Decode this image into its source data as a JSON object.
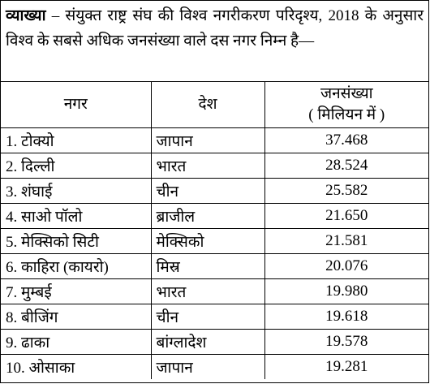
{
  "intro": {
    "label": "व्याख्या",
    "text": "– संयुक्त राष्ट्र संघ की विश्व नगरीकरण परिदृश्य, 2018 के अनुसार विश्व के सबसे अधिक जनसंख्या वाले दस नगर निम्न है—"
  },
  "table": {
    "headers": [
      "नगर",
      "देश",
      "जनसंख्या"
    ],
    "unit": "( मिलियन में )",
    "rows": [
      [
        "1. टोक्यो",
        "जापान",
        "37.468"
      ],
      [
        "2. दिल्ली",
        "भारत",
        "28.524"
      ],
      [
        "3. शंघाई",
        "चीन",
        "25.582"
      ],
      [
        "4. साओ पॉलो",
        "ब्राजील",
        "21.650"
      ],
      [
        "5. मेक्सिको सिटी",
        "मेक्सिको",
        "21.581"
      ],
      [
        "6. काहिरा (कायरो)",
        "मिस्र",
        "20.076"
      ],
      [
        "7. मुम्बई",
        "भारत",
        "19.980"
      ],
      [
        "8. बीजिंग",
        "चीन",
        "19.618"
      ],
      [
        "9. ढाका",
        "बांग्लादेश",
        "19.578"
      ],
      [
        "10. ओसाका",
        "जापान",
        "19.281"
      ]
    ]
  }
}
